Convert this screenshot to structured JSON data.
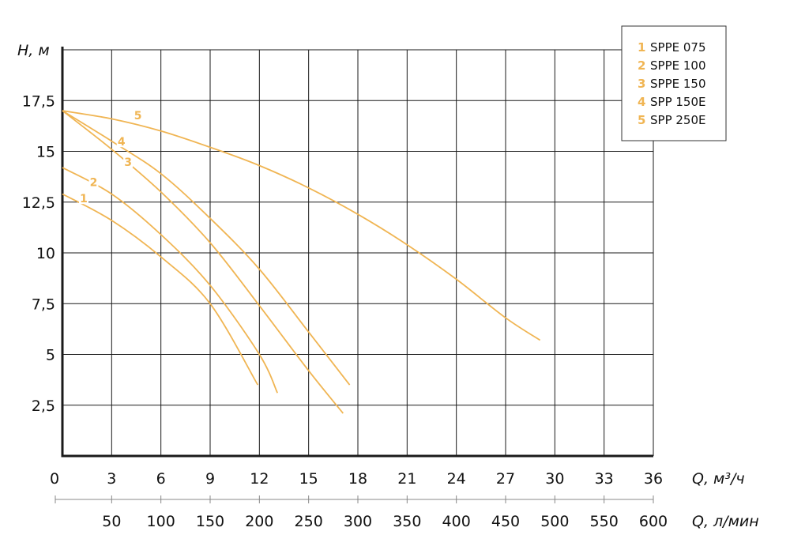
{
  "colors": {
    "curve": "#F0B553",
    "grid": "#1a1a1a",
    "text": "#111111"
  },
  "chart_data": {
    "type": "line",
    "y_axis": {
      "label": "H, м",
      "range": [
        0,
        20
      ],
      "ticks": [
        "2,5",
        "5",
        "7,5",
        "10",
        "12,5",
        "15",
        "17,5"
      ],
      "tick_values": [
        2.5,
        5,
        7.5,
        10,
        12.5,
        15,
        17.5
      ]
    },
    "x_axis": {
      "label": "Q, м³/ч",
      "range": [
        0,
        36
      ],
      "ticks": [
        "0",
        "3",
        "6",
        "9",
        "12",
        "15",
        "18",
        "21",
        "24",
        "27",
        "30",
        "33",
        "36"
      ],
      "tick_values": [
        0,
        3,
        6,
        9,
        12,
        15,
        18,
        21,
        24,
        27,
        30,
        33,
        36
      ]
    },
    "x_axis_secondary": {
      "label": "Q, л/мин",
      "ticks": [
        "50",
        "100",
        "150",
        "200",
        "250",
        "300",
        "350",
        "400",
        "450",
        "500",
        "550",
        "600"
      ],
      "tick_values": [
        50,
        100,
        150,
        200,
        250,
        300,
        350,
        400,
        450,
        500,
        550,
        600
      ]
    },
    "grid": true,
    "legend": {
      "position": "top-right"
    },
    "series": [
      {
        "id": "1",
        "name": "SPPE 075",
        "points": [
          [
            0,
            12.9
          ],
          [
            3,
            11.6
          ],
          [
            6,
            9.8
          ],
          [
            9,
            7.5
          ],
          [
            11.9,
            3.5
          ]
        ],
        "label_at": [
          1.3,
          12.6
        ]
      },
      {
        "id": "2",
        "name": "SPPE 100",
        "points": [
          [
            0,
            14.2
          ],
          [
            3,
            12.9
          ],
          [
            6,
            10.9
          ],
          [
            9,
            8.4
          ],
          [
            12,
            5.0
          ],
          [
            13.1,
            3.1
          ]
        ],
        "label_at": [
          1.9,
          13.4
        ]
      },
      {
        "id": "3",
        "name": "SPPE 150",
        "points": [
          [
            0,
            17.0
          ],
          [
            3,
            15.1
          ],
          [
            6,
            13.0
          ],
          [
            9,
            10.5
          ],
          [
            12,
            7.4
          ],
          [
            15,
            4.2
          ],
          [
            17.1,
            2.1
          ]
        ],
        "label_at": [
          4.0,
          14.4
        ]
      },
      {
        "id": "4",
        "name": "SPP 150E",
        "points": [
          [
            0,
            17.0
          ],
          [
            3,
            15.5
          ],
          [
            6,
            13.9
          ],
          [
            9,
            11.7
          ],
          [
            12,
            9.2
          ],
          [
            15,
            6.1
          ],
          [
            17.5,
            3.5
          ]
        ],
        "label_at": [
          3.6,
          15.4
        ]
      },
      {
        "id": "5",
        "name": "SPP 250E",
        "points": [
          [
            0,
            17.0
          ],
          [
            3,
            16.6
          ],
          [
            6,
            16.0
          ],
          [
            9,
            15.2
          ],
          [
            12,
            14.3
          ],
          [
            15,
            13.2
          ],
          [
            18,
            11.9
          ],
          [
            21,
            10.4
          ],
          [
            24,
            8.7
          ],
          [
            27,
            6.8
          ],
          [
            29.1,
            5.7
          ]
        ],
        "label_at": [
          4.6,
          16.7
        ]
      }
    ]
  }
}
